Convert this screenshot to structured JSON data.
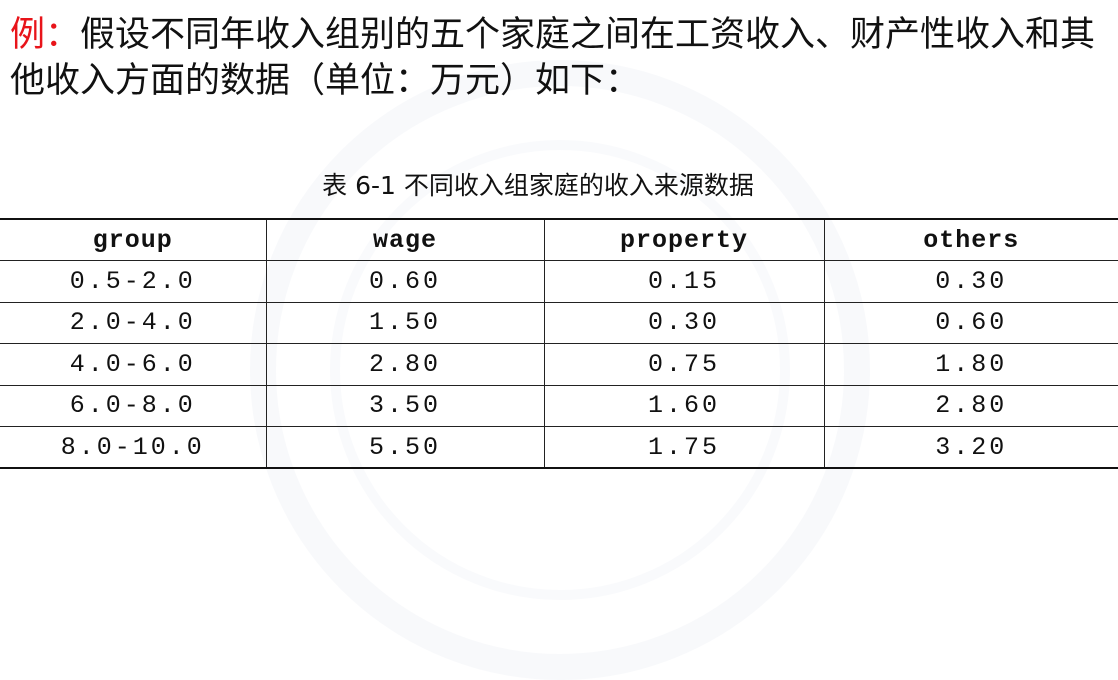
{
  "intro": {
    "label": "例：",
    "text": "假设不同年收入组别的五个家庭之间在工资收入、财产性收入和其他收入方面的数据（单位：万元）如下："
  },
  "table": {
    "caption": "表 6-1 不同收入组家庭的收入来源数据",
    "headers": [
      "group",
      "wage",
      "property",
      "others"
    ],
    "rows": [
      [
        "0.5-2.0",
        "0.60",
        "0.15",
        "0.30"
      ],
      [
        "2.0-4.0",
        "1.50",
        "0.30",
        "0.60"
      ],
      [
        "4.0-6.0",
        "2.80",
        "0.75",
        "1.80"
      ],
      [
        "6.0-8.0",
        "3.50",
        "1.60",
        "2.80"
      ],
      [
        "8.0-10.0",
        "5.50",
        "1.75",
        "3.20"
      ]
    ]
  }
}
